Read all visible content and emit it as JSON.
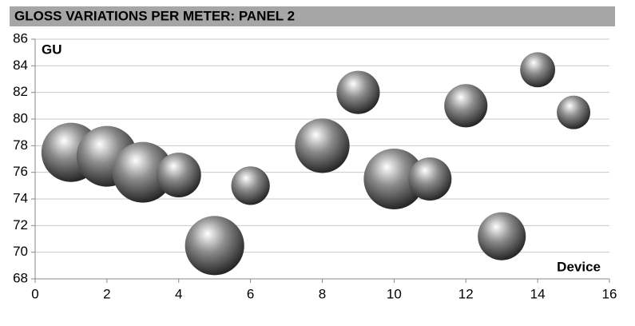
{
  "chart_data": {
    "type": "bubble",
    "title": "GLOSS VARIATIONS PER METER: PANEL 2",
    "y_label": "GU",
    "x_label": "Device",
    "series": [
      {
        "name": "Panel 2",
        "color": "#8c8c8c",
        "x": [
          1,
          2,
          3,
          4,
          5,
          6,
          8,
          9,
          10,
          11,
          12,
          13,
          14,
          15
        ],
        "values": [
          77.5,
          77.2,
          76,
          75.8,
          70.5,
          75,
          78,
          82,
          75.5,
          75.5,
          81,
          71.2,
          83.7,
          80.5
        ],
        "sizes": [
          13.7,
          14.4,
          14.4,
          7.8,
          13.7,
          5.8,
          11.6,
          7.3,
          14.4,
          7.3,
          7.3,
          9,
          4.8,
          4.4
        ]
      }
    ],
    "xlim": [
      0,
      16
    ],
    "xticks": [
      0,
      2,
      4,
      6,
      8,
      10,
      12,
      14,
      16
    ],
    "ylim": [
      68,
      86
    ],
    "yticks": [
      68,
      70,
      72,
      74,
      76,
      78,
      80,
      82,
      84,
      86
    ],
    "grid": true
  }
}
